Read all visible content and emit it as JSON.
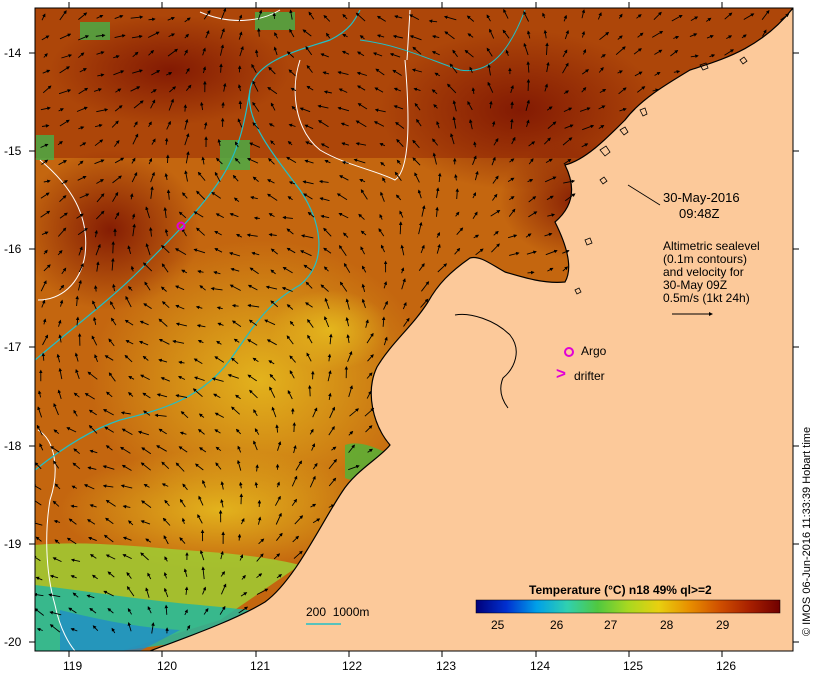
{
  "map": {
    "date_label": "30-May-2016",
    "time_label": "09:48Z",
    "altimetry_note": [
      "Altimetric sealevel",
      "(0.1m contours)",
      "and velocity for",
      "30-May 09Z",
      "0.5m/s (1kt 24h)"
    ],
    "argo_label": "Argo",
    "drifter_label": "drifter",
    "drifter_symbol": ">",
    "depth_contour_label": "200  1000m",
    "credit": "© IMOS 06-Jun-2016 11:33:39 Hobart time",
    "colorbar": {
      "title": "Temperature (°C) n18 49% ql>=2",
      "tick_labels": [
        "25",
        "26",
        "27",
        "28",
        "29"
      ]
    },
    "lon_labels": [
      "119",
      "120",
      "121",
      "122",
      "123",
      "124",
      "125",
      "126"
    ],
    "lat_labels": [
      "-14",
      "-15",
      "-16",
      "-17",
      "-18",
      "-19",
      "-20"
    ],
    "colors": {
      "land": "#fcc99a",
      "sst_warm": "#8f1d05",
      "sst_mid": "#c96a12",
      "sst_cool": "#e5b820",
      "sst_cold": "#3a9d45",
      "argo": "#e100d6",
      "bathymetry": "#20c0c8",
      "sealevel_contour": "#ffffff"
    }
  }
}
